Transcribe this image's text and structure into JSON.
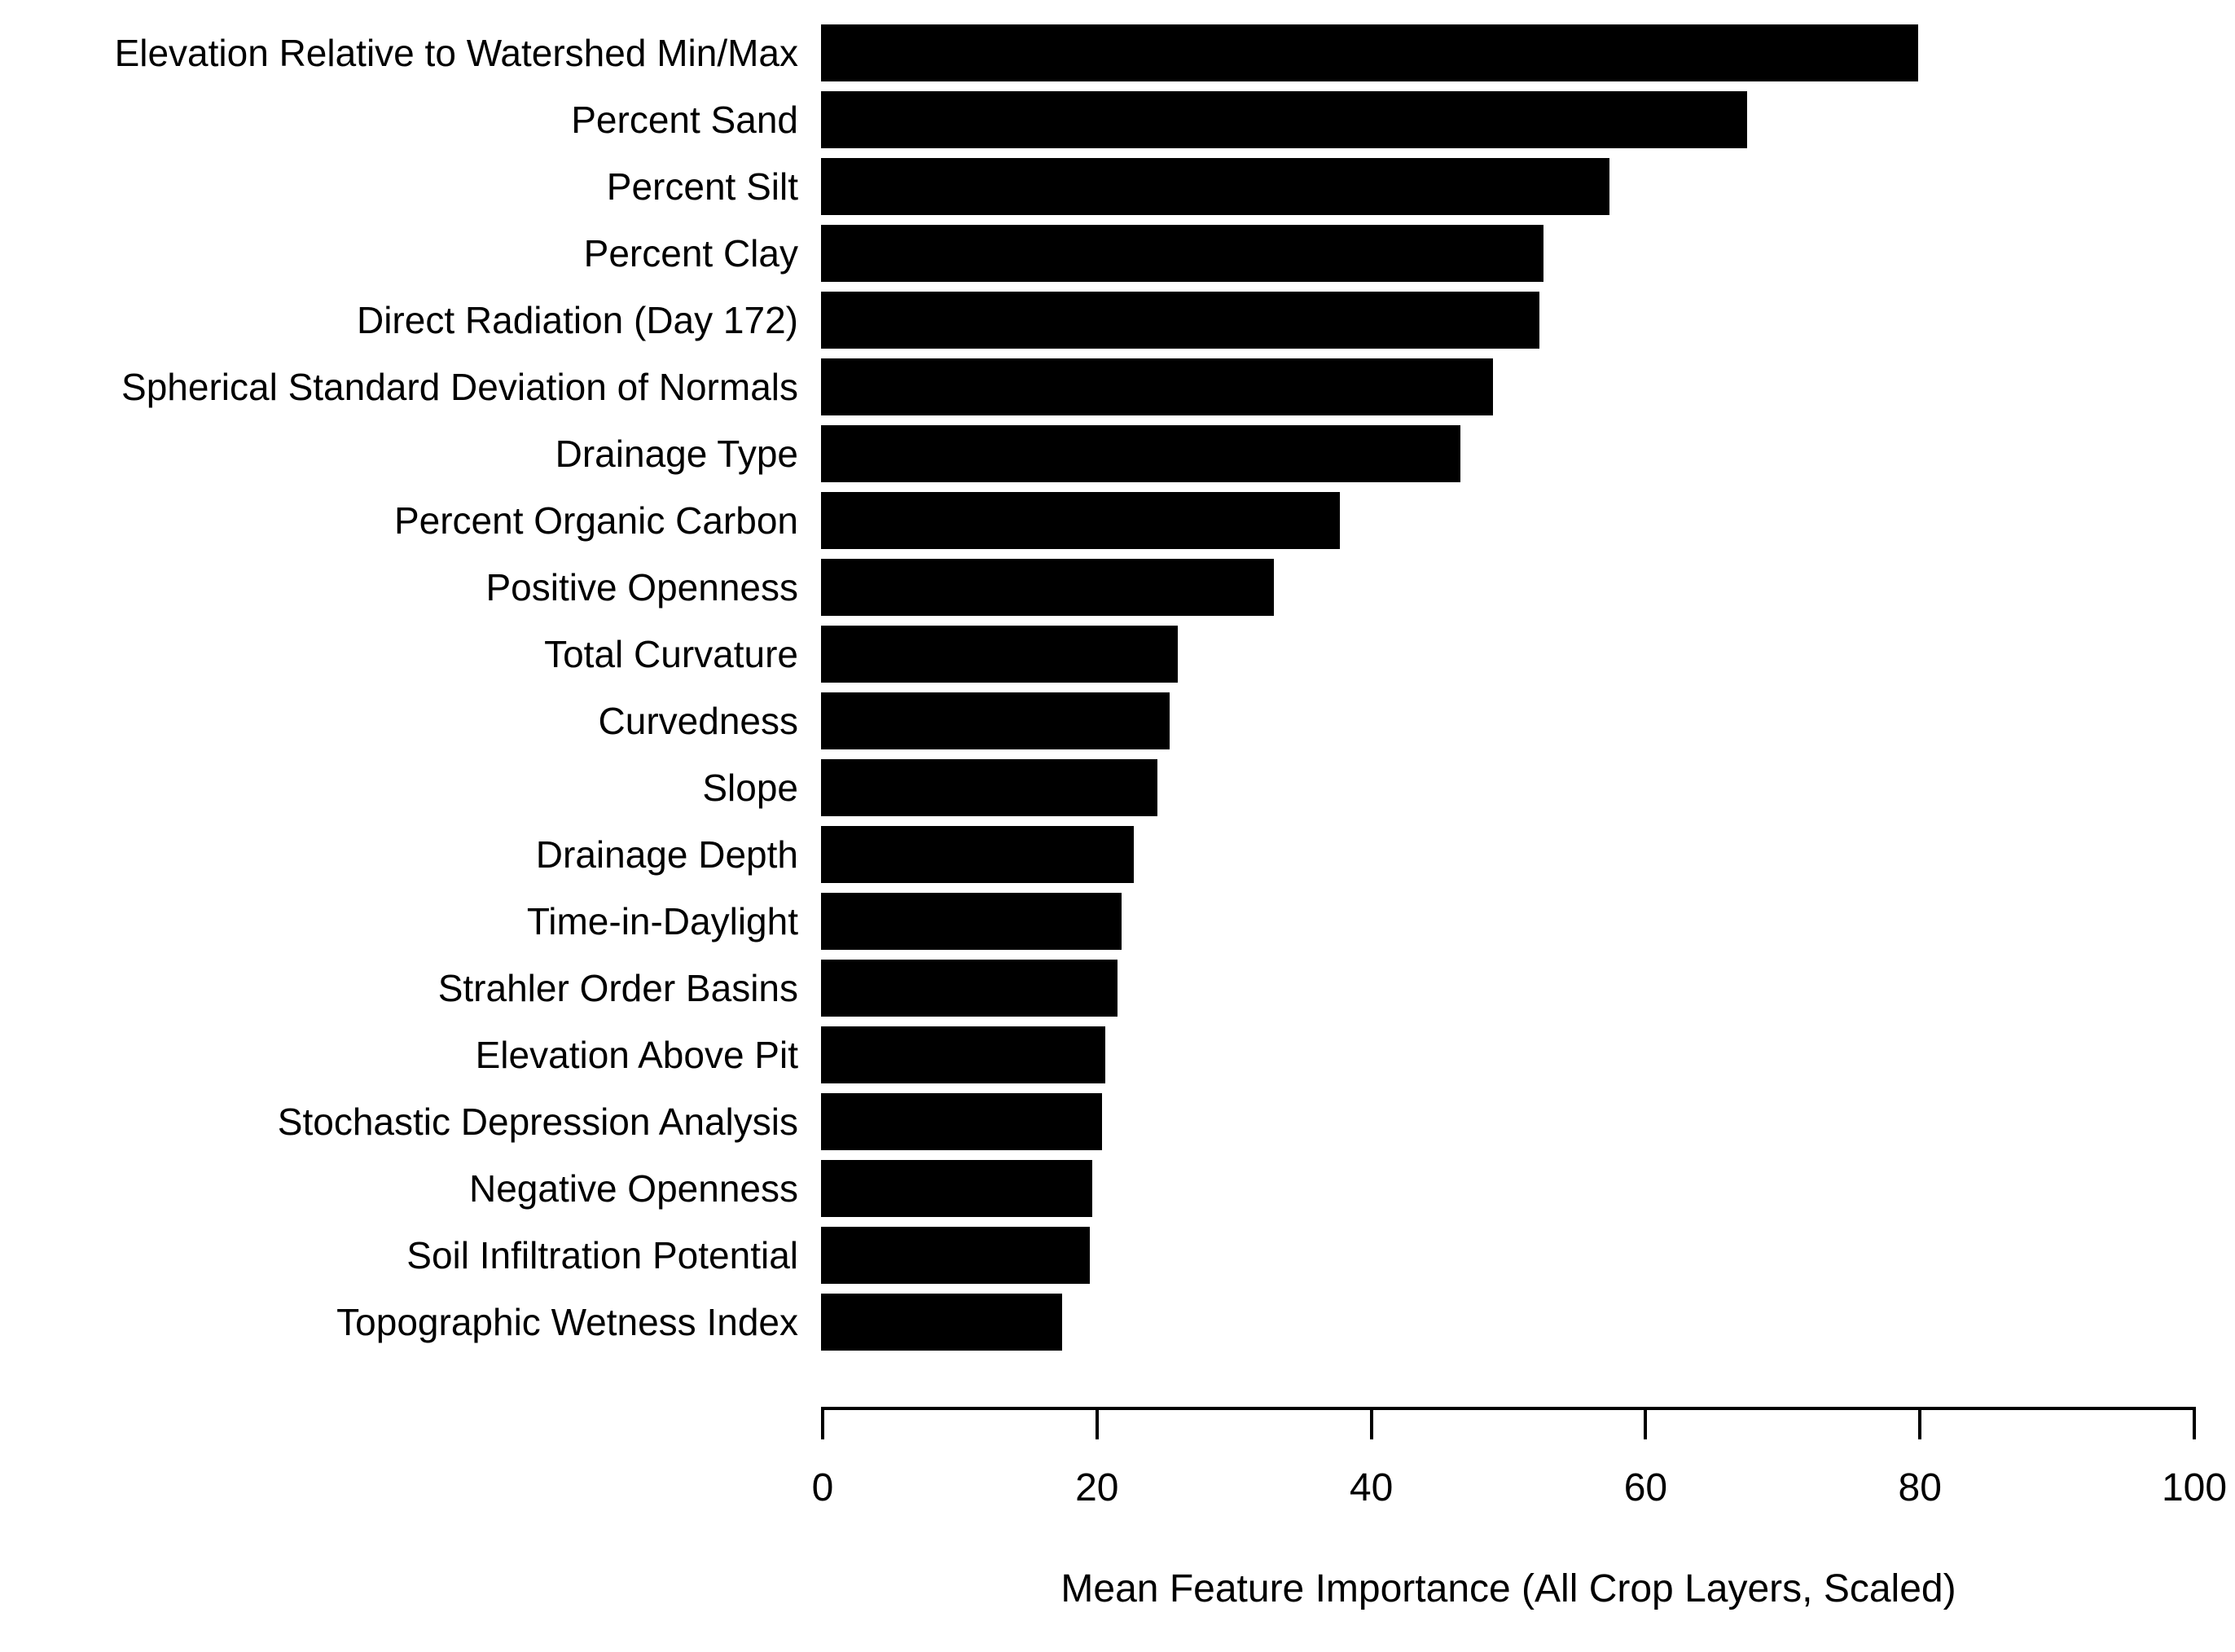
{
  "figure": {
    "background_color": "#ffffff",
    "bar_color": "#000000",
    "axis_color": "#000000",
    "text_color": "#000000"
  },
  "chart_data": {
    "type": "bar",
    "orientation": "horizontal",
    "title": "",
    "xlabel": "Mean Feature Importance (All Crop Layers, Scaled)",
    "ylabel": "",
    "xlim": [
      0,
      100
    ],
    "x_ticks": [
      0,
      20,
      40,
      60,
      80,
      100
    ],
    "grid": false,
    "legend": false,
    "categories": [
      "Elevation Relative to Watershed Min/Max",
      "Percent Sand",
      "Percent Silt",
      "Percent Clay",
      "Direct Radiation (Day 172)",
      "Spherical Standard Deviation of Normals",
      "Drainage Type",
      "Percent Organic Carbon",
      "Positive Openness",
      "Total Curvature",
      "Curvedness",
      "Slope",
      "Drainage Depth",
      "Time-in-Daylight",
      "Strahler Order Basins",
      "Elevation Above Pit",
      "Stochastic Depression Analysis",
      "Negative Openness",
      "Soil Infiltration Potential",
      "Topographic Wetness Index"
    ],
    "values": [
      80.0,
      67.5,
      57.5,
      52.7,
      52.4,
      49.0,
      46.6,
      37.8,
      33.0,
      26.0,
      25.4,
      24.5,
      22.8,
      21.9,
      21.6,
      20.7,
      20.5,
      19.8,
      19.6,
      17.6
    ]
  }
}
